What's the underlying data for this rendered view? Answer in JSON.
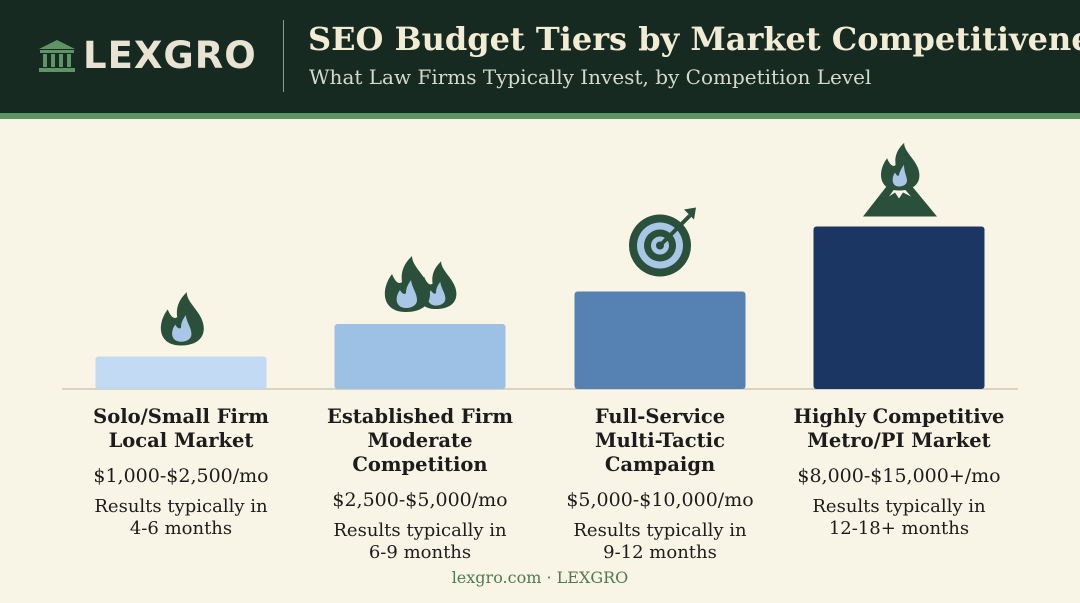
{
  "header": {
    "logo_text": "LEXGRO",
    "logo_icon": "courthouse-icon",
    "title": "SEO Budget Tiers by Market Competitiveness",
    "subtitle": "What Law Firms Typically Invest, by Competition Level"
  },
  "chart_data": {
    "type": "bar",
    "title": "SEO Budget Tiers by Market Competitiveness",
    "subtitle": "What Law Firms Typically Invest, by Competition Level",
    "categories": [
      "Solo/Small Firm\nLocal Market",
      "Established Firm\nModerate Competition",
      "Full-Service\nMulti-Tactic Campaign",
      "Highly Competitive\nMetro/PI Market"
    ],
    "values": [
      1,
      2,
      3,
      5
    ],
    "price_labels": [
      "$1,000-$2,500/mo",
      "$2,500-$5,000/mo",
      "$5,000-$10,000/mo",
      "$8,000-$15,000+/mo"
    ],
    "results_labels": [
      "Results typically in\n4-6 months",
      "Results typically in\n6-9 months",
      "Results typically in\n9-12 months",
      "Results typically in\n12-18+ months"
    ],
    "icons": [
      "single-flame-icon",
      "double-flame-icon",
      "target-icon",
      "flaming-mountain-icon"
    ],
    "colors": [
      "#c2daf3",
      "#9dc0e5",
      "#5581b3",
      "#1c3664"
    ],
    "xlabel": "",
    "ylabel": "",
    "grid": false,
    "legend": "none"
  },
  "tiers": [
    {
      "line1": "Solo/Small Firm",
      "line2": "Local Market",
      "price": "$1,000-$2,500/mo",
      "results_line1": "Results typically in",
      "results_line2": "4-6 months"
    },
    {
      "line1": "Established Firm",
      "line2": "Moderate Competition",
      "price": "$2,500-$5,000/mo",
      "results_line1": "Results typically in",
      "results_line2": "6-9 months"
    },
    {
      "line1": "Full-Service",
      "line2": "Multi-Tactic Campaign",
      "price": "$5,000-$10,000/mo",
      "results_line1": "Results typically in",
      "results_line2": "9-12 months"
    },
    {
      "line1": "Highly Competitive",
      "line2": "Metro/PI Market",
      "price": "$8,000-$15,000+/mo",
      "results_line1": "Results typically in",
      "results_line2": "12-18+ months"
    }
  ],
  "footer": {
    "text": "lexgro.com · LEXGRO"
  },
  "colors": {
    "header_bg": "#172a21",
    "accent_green": "#5f9465",
    "page_bg": "#f8f4e6",
    "icon_green": "#2a4f3a"
  }
}
